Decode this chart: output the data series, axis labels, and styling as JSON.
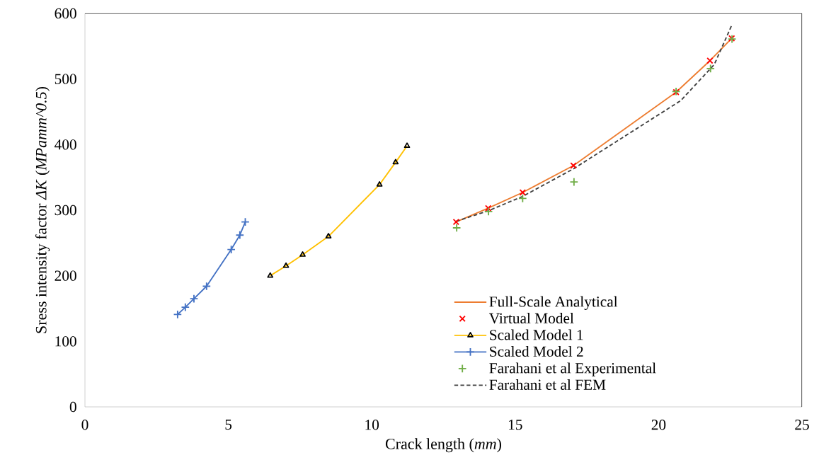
{
  "chart_data": {
    "type": "line",
    "xlabel": "Crack length (*mm*)",
    "ylabel": "Sress intensity factor *ΔK* (*MPamm^0.5*)",
    "xlim": [
      0,
      25
    ],
    "ylim": [
      0,
      600
    ],
    "xticks": [
      0,
      5,
      10,
      15,
      20,
      25
    ],
    "yticks": [
      0,
      100,
      200,
      300,
      400,
      500,
      600
    ],
    "grid": false,
    "legend": "bottom right",
    "series": [
      {
        "name": "Full-Scale Analytical",
        "color": "#ed7d31",
        "marker": "none",
        "line_style": "solid",
        "x": [
          12.94,
          14.06,
          15.26,
          17.03,
          20.61,
          21.79,
          22.55
        ],
        "values": [
          282,
          303,
          327,
          368,
          480,
          528,
          562
        ]
      },
      {
        "name": "Virtual Model",
        "type": "scatter",
        "color": "#ff0000",
        "marker": "cross",
        "x": [
          12.94,
          14.06,
          15.26,
          17.03,
          20.61,
          21.79,
          22.55
        ],
        "values": [
          282,
          303,
          327,
          368,
          480,
          528,
          562
        ]
      },
      {
        "name": "Scaled Model 1",
        "color": "#ffc000",
        "marker": "triangle",
        "line_style": "solid",
        "x": [
          6.46,
          7.01,
          7.59,
          8.49,
          10.27,
          10.83,
          11.23
        ],
        "values": [
          200,
          215,
          232,
          260,
          339,
          373,
          398
        ]
      },
      {
        "name": "Scaled Model 2",
        "color": "#4472c4",
        "marker": "plus",
        "line_style": "solid",
        "x": [
          3.23,
          3.5,
          3.8,
          4.24,
          5.1,
          5.4,
          5.59
        ],
        "values": [
          141,
          152,
          165,
          184,
          240,
          262,
          282
        ]
      },
      {
        "name": "Farahani et al Experimental",
        "type": "scatter",
        "color": "#70ad47",
        "marker": "plus",
        "x": [
          12.96,
          14.07,
          15.26,
          17.05,
          20.61,
          21.81,
          22.56
        ],
        "values": [
          273,
          298,
          318,
          343,
          481,
          516,
          561
        ]
      },
      {
        "name": "Farahani et al FEM",
        "color": "#404040",
        "marker": "none",
        "line_style": "dashed",
        "x": [
          12.94,
          14.06,
          15.26,
          17.03,
          20.77,
          21.94,
          22.55
        ],
        "values": [
          283,
          299,
          321,
          363,
          467,
          522,
          582
        ]
      }
    ]
  }
}
